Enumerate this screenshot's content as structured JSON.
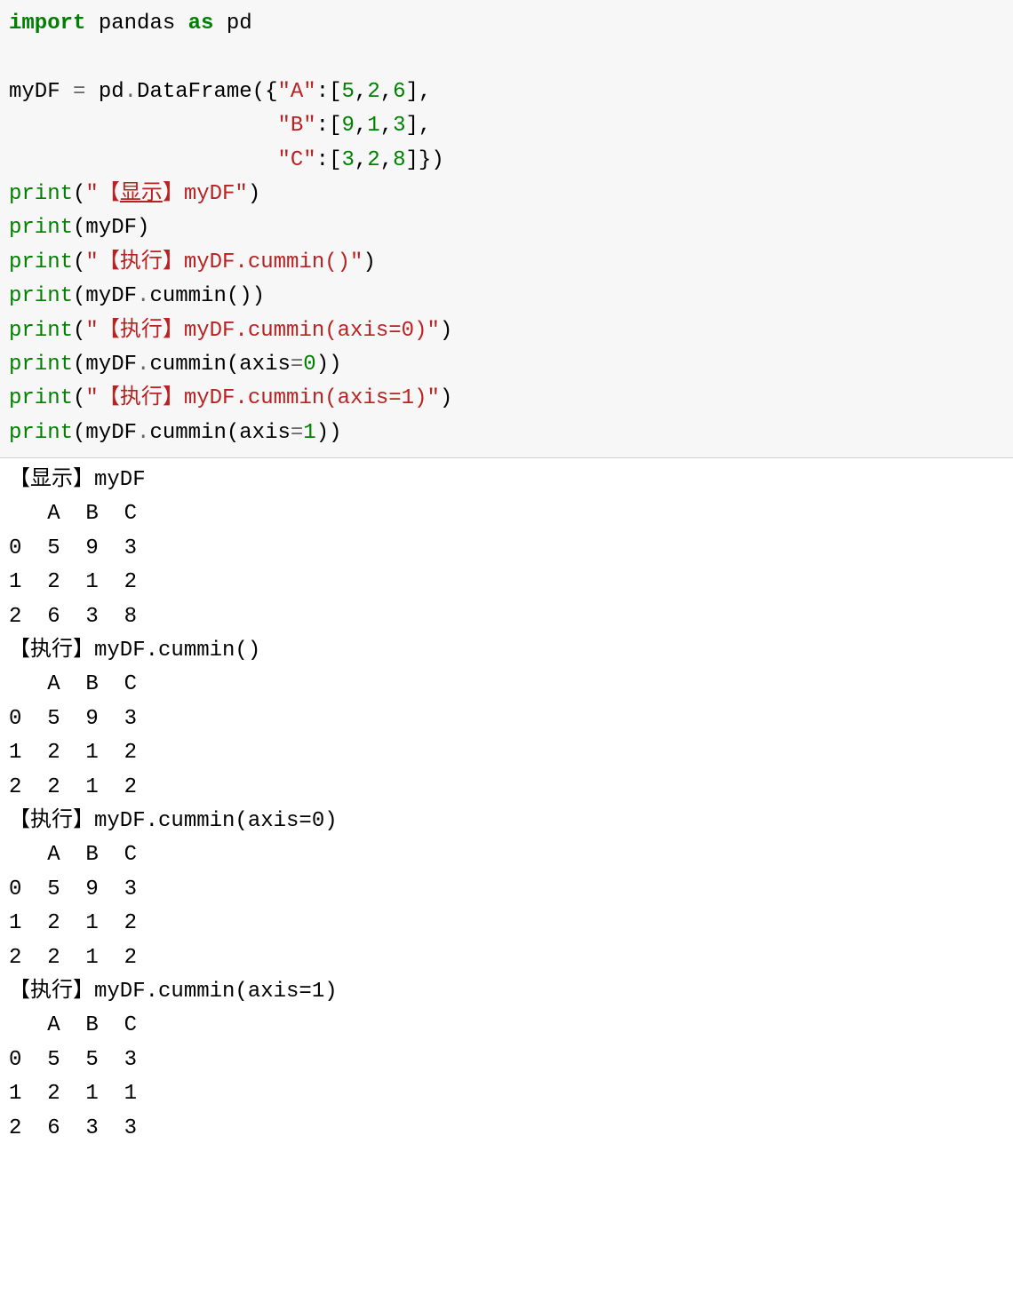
{
  "code": {
    "background_color": "#f7f7f7",
    "font_size": 24,
    "colors": {
      "keyword": "#008000",
      "string": "#ba2121",
      "number": "#008000",
      "function": "#008000",
      "operator": "#666666",
      "text": "#000000"
    },
    "tokens": {
      "import": "import",
      "pandas": "pandas",
      "as": "as",
      "pd": "pd",
      "myDF": "myDF",
      "eq": "=",
      "dot": ".",
      "DataFrame": "DataFrame",
      "lparen": "(",
      "rparen": ")",
      "lbrace": "{",
      "rbrace": "}",
      "lbracket": "[",
      "rbracket": "]",
      "comma": ",",
      "colon": ":",
      "strA": "\"A\"",
      "strB": "\"B\"",
      "strC": "\"C\"",
      "n5": "5",
      "n2": "2",
      "n6": "6",
      "n9": "9",
      "n1": "1",
      "n3": "3",
      "n8": "8",
      "n0": "0",
      "print": "print",
      "str_show_myDF_pre": "\"【",
      "str_show": "显示",
      "str_show_myDF_post": "】myDF\"",
      "str_exec_cummin": "\"【执行】myDF.cummin()\"",
      "str_exec_cummin_axis0": "\"【执行】myDF.cummin(axis=0)\"",
      "str_exec_cummin_axis1": "\"【执行】myDF.cummin(axis=1)\"",
      "cummin": "cummin",
      "axis": "axis",
      "indent_df_b": "                     ",
      "indent_df_c": "                     "
    }
  },
  "output": {
    "background_color": "#ffffff",
    "font_size": 24,
    "text_color": "#000000",
    "sections": {
      "s1_title": "【显示】myDF",
      "s1_header": "   A  B  C",
      "s1_r0": "0  5  9  3",
      "s1_r1": "1  2  1  2",
      "s1_r2": "2  6  3  8",
      "s2_title": "【执行】myDF.cummin()",
      "s2_header": "   A  B  C",
      "s2_r0": "0  5  9  3",
      "s2_r1": "1  2  1  2",
      "s2_r2": "2  2  1  2",
      "s3_title": "【执行】myDF.cummin(axis=0)",
      "s3_header": "   A  B  C",
      "s3_r0": "0  5  9  3",
      "s3_r1": "1  2  1  2",
      "s3_r2": "2  2  1  2",
      "s4_title": "【执行】myDF.cummin(axis=1)",
      "s4_header": "   A  B  C",
      "s4_r0": "0  5  5  3",
      "s4_r1": "1  2  1  1",
      "s4_r2": "2  6  3  3"
    }
  }
}
